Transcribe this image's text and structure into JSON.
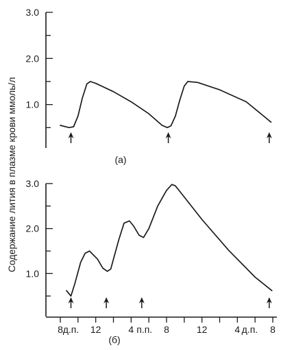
{
  "ylabel": "Содержание лития в плазме крови ммоль/л",
  "colors": {
    "line": "#1a1a1a",
    "background": "#ffffff"
  },
  "chart_data": [
    {
      "type": "line",
      "panel_label": "(а)",
      "xlabel": "",
      "ylim": [
        0,
        3.0
      ],
      "yticks": [
        "3.0",
        "2.0",
        "1.0"
      ],
      "ytick_values": [
        3.0,
        2.0,
        1.0
      ],
      "xlim": [
        0,
        24
      ],
      "dose_arrows_x": [
        1.2,
        12.2,
        23.6
      ],
      "series": [
        {
          "x": [
            0.0,
            1.0,
            1.5,
            2.0,
            2.5,
            3.0,
            3.4,
            4.0,
            6.0,
            8.0,
            10.0,
            11.5,
            12.1,
            12.5,
            13.0,
            13.5,
            14.0,
            14.4,
            15.5,
            18.0,
            21.0,
            23.8
          ],
          "values": [
            0.55,
            0.5,
            0.52,
            0.75,
            1.15,
            1.45,
            1.5,
            1.46,
            1.28,
            1.06,
            0.8,
            0.55,
            0.5,
            0.54,
            0.75,
            1.1,
            1.4,
            1.5,
            1.48,
            1.32,
            1.06,
            0.62
          ]
        }
      ]
    },
    {
      "type": "line",
      "panel_label": "(б)",
      "xlabel": "",
      "ylim": [
        0,
        3.0
      ],
      "yticks": [
        "3.0",
        "2.0",
        "1.0"
      ],
      "ytick_values": [
        3.0,
        2.0,
        1.0
      ],
      "xlim": [
        0,
        24
      ],
      "xticks": [
        "8",
        "д.п.",
        "12",
        "4",
        "п.п.",
        "8",
        "12",
        "4",
        "д.п.",
        "8"
      ],
      "xtick_values": [
        0,
        1.2,
        4,
        8,
        9.5,
        12,
        16,
        20,
        21.4,
        24
      ],
      "dose_arrows_x": [
        1.2,
        5.2,
        9.2,
        23.6
      ],
      "series": [
        {
          "x": [
            0.7,
            1.2,
            1.6,
            2.3,
            2.8,
            3.3,
            4.2,
            4.8,
            5.3,
            5.7,
            6.6,
            7.2,
            7.8,
            8.3,
            8.9,
            9.4,
            10.0,
            11.0,
            12.0,
            12.6,
            13.0,
            13.6,
            16.0,
            19.0,
            22.0,
            23.9
          ],
          "values": [
            0.62,
            0.5,
            0.75,
            1.25,
            1.45,
            1.5,
            1.32,
            1.12,
            1.05,
            1.1,
            1.75,
            2.12,
            2.17,
            2.05,
            1.85,
            1.8,
            2.0,
            2.5,
            2.85,
            2.98,
            2.95,
            2.8,
            2.2,
            1.52,
            0.92,
            0.62
          ]
        }
      ]
    }
  ]
}
